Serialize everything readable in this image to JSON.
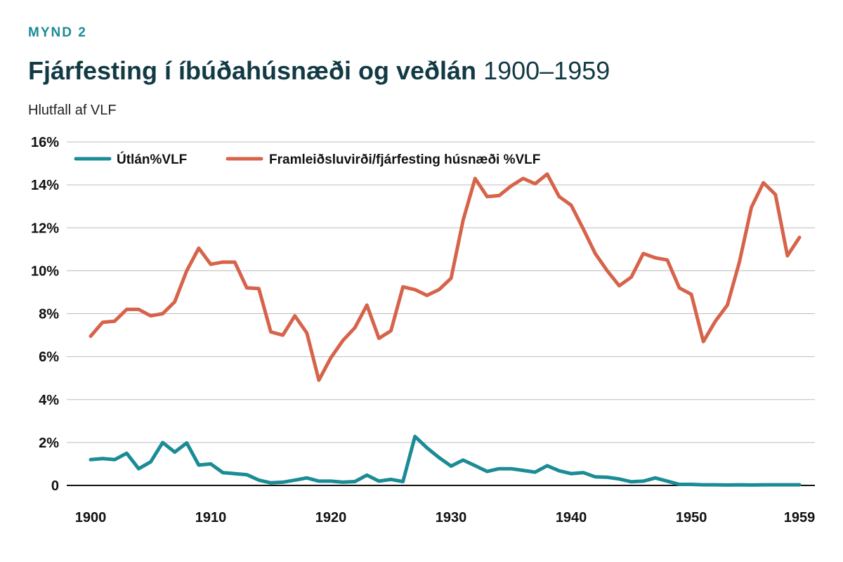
{
  "header": {
    "figure_label": "MYND 2",
    "title_bold": "Fjárfesting í íbúðahúsnæði og veðlán",
    "title_light": "1900–1959",
    "subtitle": "Hlutfall af VLF"
  },
  "chart_data": {
    "type": "line",
    "title": "Fjárfesting í íbúðahúsnæði og veðlán 1900–1959",
    "ylabel": "Hlutfall af VLF",
    "ylim": [
      0,
      16
    ],
    "xlim": [
      1900,
      1959
    ],
    "x_ticks": [
      1900,
      1910,
      1920,
      1930,
      1940,
      1950,
      1959
    ],
    "x_tick_labels": [
      "1900",
      "1910",
      "1920",
      "1930",
      "1940",
      "1950",
      "1959"
    ],
    "y_ticks": [
      0,
      2,
      4,
      6,
      8,
      10,
      12,
      14,
      16
    ],
    "y_tick_labels": [
      "0",
      "2%",
      "4%",
      "6%",
      "8%",
      "10%",
      "12%",
      "14%",
      "16%"
    ],
    "grid": true,
    "legend_position": "top-left",
    "x": [
      1900,
      1901,
      1902,
      1903,
      1904,
      1905,
      1906,
      1907,
      1908,
      1909,
      1910,
      1911,
      1912,
      1913,
      1914,
      1915,
      1916,
      1917,
      1918,
      1919,
      1920,
      1921,
      1922,
      1923,
      1924,
      1925,
      1926,
      1927,
      1928,
      1929,
      1930,
      1931,
      1932,
      1933,
      1934,
      1935,
      1936,
      1937,
      1938,
      1939,
      1940,
      1941,
      1942,
      1943,
      1944,
      1945,
      1946,
      1947,
      1948,
      1949,
      1950,
      1951,
      1952,
      1953,
      1954,
      1955,
      1956,
      1957,
      1958,
      1959
    ],
    "series": [
      {
        "name": "Útlán%VLF",
        "color": "#1b8b96",
        "values": [
          1.2,
          1.25,
          1.2,
          1.5,
          0.78,
          1.1,
          2.0,
          1.55,
          1.98,
          0.95,
          1.0,
          0.6,
          0.55,
          0.5,
          0.25,
          0.12,
          0.15,
          0.25,
          0.35,
          0.2,
          0.2,
          0.15,
          0.18,
          0.48,
          0.2,
          0.28,
          0.18,
          2.28,
          1.75,
          1.3,
          0.9,
          1.18,
          0.92,
          0.65,
          0.78,
          0.78,
          0.7,
          0.62,
          0.92,
          0.68,
          0.55,
          0.6,
          0.4,
          0.38,
          0.3,
          0.17,
          0.2,
          0.35,
          0.2,
          0.05,
          0.05,
          0.03,
          0.03,
          0.02,
          0.03,
          0.02,
          0.03,
          0.03,
          0.03,
          0.03
        ]
      },
      {
        "name": "Framleiðsluvirði/fjárfesting húsnæði %VLF",
        "color": "#d6634a",
        "values": [
          6.95,
          7.6,
          7.65,
          8.2,
          8.2,
          7.9,
          8.0,
          8.55,
          10.0,
          11.05,
          10.3,
          10.4,
          10.4,
          9.2,
          9.17,
          7.15,
          7.0,
          7.9,
          7.1,
          4.9,
          5.95,
          6.75,
          7.35,
          8.4,
          6.85,
          7.2,
          9.25,
          9.12,
          8.85,
          9.12,
          9.65,
          12.35,
          14.3,
          13.45,
          13.5,
          13.95,
          14.3,
          14.05,
          14.5,
          13.45,
          13.05,
          11.95,
          10.8,
          10.0,
          9.3,
          9.7,
          10.8,
          10.6,
          10.5,
          9.2,
          8.9,
          6.7,
          7.65,
          8.4,
          10.4,
          12.95,
          14.1,
          13.55,
          10.7,
          11.55
        ]
      }
    ]
  }
}
